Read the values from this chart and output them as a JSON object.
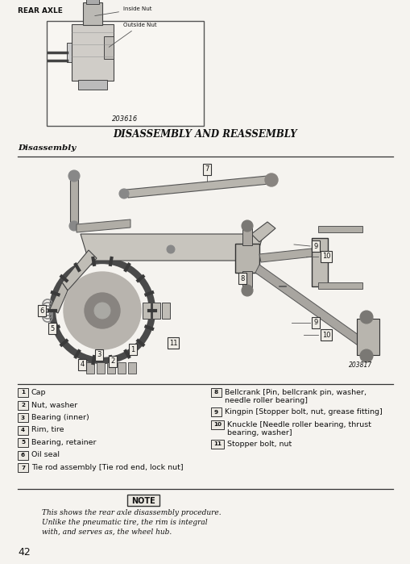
{
  "bg_color": "#f5f3ef",
  "page_bg": "#f5f3ef",
  "header_text": "REAR AXLE",
  "fig_caption1": "203616",
  "fig_caption2": "203817",
  "section_title": "DISASSEMBLY AND REASSEMBLY",
  "subsection": "Disassembly",
  "page_number": "42",
  "left_items": [
    {
      "num": "1",
      "text": "Cap"
    },
    {
      "num": "2",
      "text": "Nut, washer"
    },
    {
      "num": "3",
      "text": "Bearing (inner)"
    },
    {
      "num": "4",
      "text": "Rim, tire"
    },
    {
      "num": "5",
      "text": "Bearing, retainer"
    },
    {
      "num": "6",
      "text": "Oil seal"
    },
    {
      "num": "7",
      "text": "Tie rod assembly [Tie rod end, lock nut]"
    }
  ],
  "right_items": [
    {
      "num": "8",
      "text": "Bellcrank [Pin, bellcrank pin, washer,\nneedle roller bearing]"
    },
    {
      "num": "9",
      "text": "Kingpin [Stopper bolt, nut, grease fitting]"
    },
    {
      "num": "10",
      "text": "Knuckle [Needle roller bearing, thrust\nbearing, washer]"
    },
    {
      "num": "11",
      "text": "Stopper bolt, nut"
    }
  ],
  "note_title": "NOTE",
  "note_text": "This shows the rear axle disassembly procedure.\nUnlike the pneumatic tire, the rim is integral\nwith, and serves as, the wheel hub.",
  "font_color": "#111111",
  "line_color": "#333333"
}
